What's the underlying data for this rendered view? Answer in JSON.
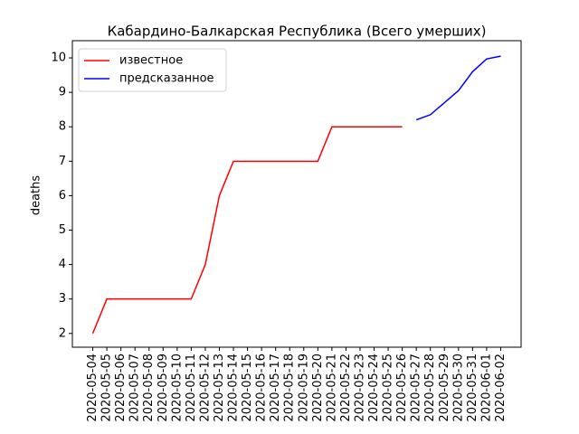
{
  "chart_data": {
    "type": "line",
    "title": "Кабардино-Балкарская Республика (Всего умерших)",
    "y_label": "deaths",
    "categories": [
      "2020-05-04",
      "2020-05-05",
      "2020-05-06",
      "2020-05-07",
      "2020-05-08",
      "2020-05-09",
      "2020-05-10",
      "2020-05-11",
      "2020-05-12",
      "2020-05-13",
      "2020-05-14",
      "2020-05-15",
      "2020-05-16",
      "2020-05-17",
      "2020-05-18",
      "2020-05-19",
      "2020-05-20",
      "2020-05-21",
      "2020-05-22",
      "2020-05-23",
      "2020-05-24",
      "2020-05-25",
      "2020-05-26",
      "2020-05-27",
      "2020-05-28",
      "2020-05-29",
      "2020-05-30",
      "2020-05-31",
      "2020-06-01",
      "2020-06-02"
    ],
    "series": [
      {
        "name": "известное",
        "color": "#ff0000",
        "values": [
          2,
          3,
          3,
          3,
          3,
          3,
          3,
          3,
          4,
          6,
          7,
          7,
          7,
          7,
          7,
          7,
          7,
          8,
          8,
          8,
          8,
          8,
          8,
          null,
          null,
          null,
          null,
          null,
          null,
          null
        ]
      },
      {
        "name": "предсказанное",
        "color": "#0000ff",
        "values": [
          null,
          null,
          null,
          null,
          null,
          null,
          null,
          null,
          null,
          null,
          null,
          null,
          null,
          null,
          null,
          null,
          null,
          null,
          null,
          null,
          null,
          null,
          null,
          8.2,
          8.35,
          8.7,
          9.05,
          9.6,
          9.97,
          10.05
        ]
      }
    ],
    "ylim": [
      1.6,
      10.5
    ],
    "yticks": [
      2,
      3,
      4,
      5,
      6,
      7,
      8,
      9,
      10
    ],
    "legend": "upper left"
  }
}
